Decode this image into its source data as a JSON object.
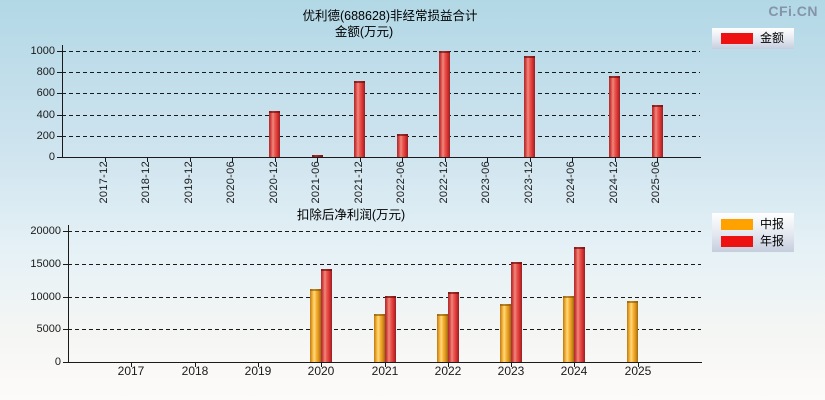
{
  "watermark": "CFi.CN",
  "chart_data": [
    {
      "type": "bar",
      "title": "优利德(688628)非经常损益合计",
      "ylabel": "金额(万元)",
      "categories": [
        "2017-12",
        "2018-12",
        "2019-12",
        "2020-06",
        "2020-12",
        "2021-06",
        "2021-12",
        "2022-06",
        "2022-12",
        "2023-06",
        "2023-12",
        "2024-06",
        "2024-12",
        "2025-06"
      ],
      "series": [
        {
          "name": "金额",
          "color": "#ee1111",
          "values": [
            0,
            0,
            0,
            0,
            430,
            15,
            720,
            215,
            1000,
            0,
            950,
            0,
            760,
            490
          ]
        }
      ],
      "ylim": [
        0,
        1000
      ],
      "yticks": [
        0,
        200,
        400,
        600,
        800,
        1000
      ],
      "grid": true,
      "legend_position": "top-right"
    },
    {
      "type": "bar",
      "title": "扣除后净利润(万元)",
      "categories": [
        "2017",
        "2018",
        "2019",
        "2020",
        "2021",
        "2022",
        "2023",
        "2024",
        "2025"
      ],
      "series": [
        {
          "name": "中报",
          "color": "#ffa200",
          "values": [
            0,
            0,
            0,
            11200,
            7400,
            7400,
            8800,
            10100,
            9300
          ]
        },
        {
          "name": "年报",
          "color": "#ee1111",
          "values": [
            0,
            0,
            0,
            14200,
            10100,
            10700,
            15200,
            17600,
            0
          ]
        }
      ],
      "ylim": [
        0,
        20000
      ],
      "yticks": [
        0,
        5000,
        10000,
        15000,
        20000
      ],
      "grid": true,
      "legend_position": "right"
    }
  ]
}
